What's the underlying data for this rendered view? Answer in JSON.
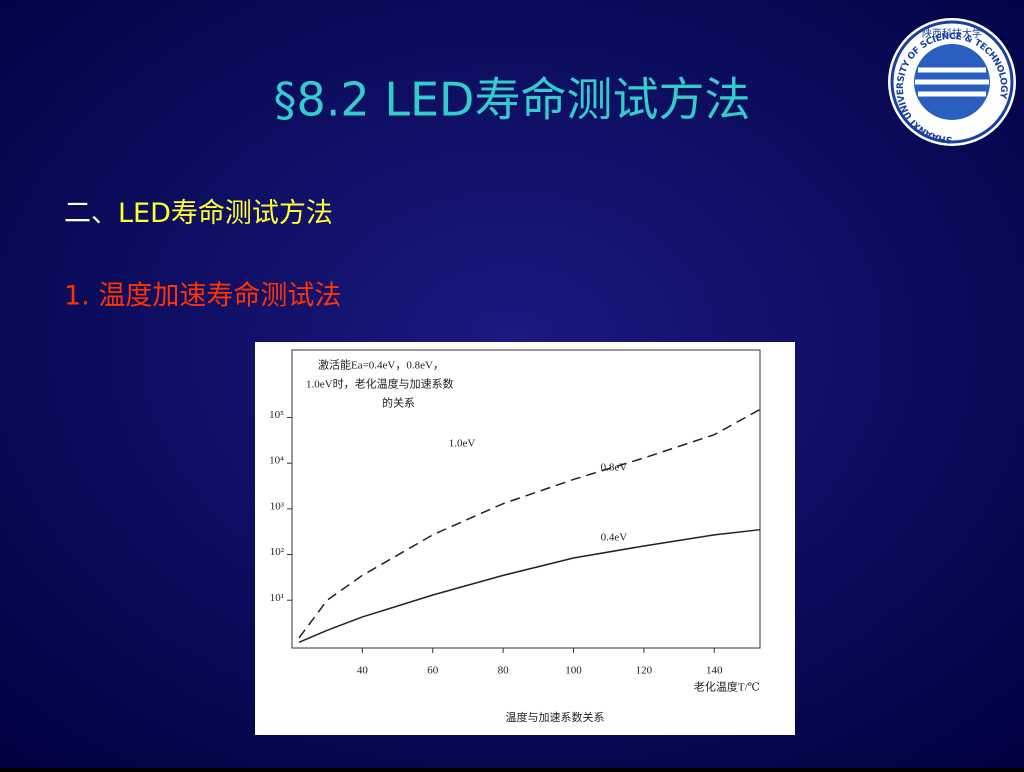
{
  "slide": {
    "title": "§8.2 LED寿命测试方法",
    "heading": {
      "prefix": "二、",
      "text": "LED寿命测试方法"
    },
    "item": "1. 温度加速寿命测试法",
    "logo": {
      "name": "陕西科技大学",
      "english": "SHAANXI UNIVERSITY OF SCIENCE & TECHNOLOGY"
    },
    "caption": "温度与加速系数关系"
  },
  "chart_data": {
    "type": "line",
    "annotation": [
      "激活能Ea=0.4eV，0.8eV，",
      "1.0eV时，老化温度与加速系数",
      "的关系"
    ],
    "extra_label": "1.0eV",
    "x_label": "老化温度T/℃",
    "x": [
      22,
      30,
      40,
      60,
      80,
      100,
      120,
      140,
      153
    ],
    "series": [
      {
        "name": "0.8eV",
        "color": "#222222",
        "dash": true,
        "values": [
          1.5,
          10,
          35,
          270,
          1300,
          4400,
          13000,
          42000,
          150000
        ]
      },
      {
        "name": "0.4eV",
        "color": "#222222",
        "dash": false,
        "values": [
          1.2,
          2.2,
          4.3,
          13,
          35,
          84,
          154,
          270,
          350
        ]
      }
    ],
    "xlim": [
      20,
      153
    ],
    "ylim": [
      0.9,
      3000000
    ],
    "log_y": true,
    "xticks": [
      40,
      60,
      80,
      100,
      120,
      140
    ],
    "yticks": [
      {
        "value": 10,
        "label": "10¹"
      },
      {
        "value": 100,
        "label": "10²"
      },
      {
        "value": 1000,
        "label": "10³"
      },
      {
        "value": 10000,
        "label": "10⁴"
      },
      {
        "value": 100000,
        "label": "10⁵"
      }
    ],
    "grid": false
  }
}
